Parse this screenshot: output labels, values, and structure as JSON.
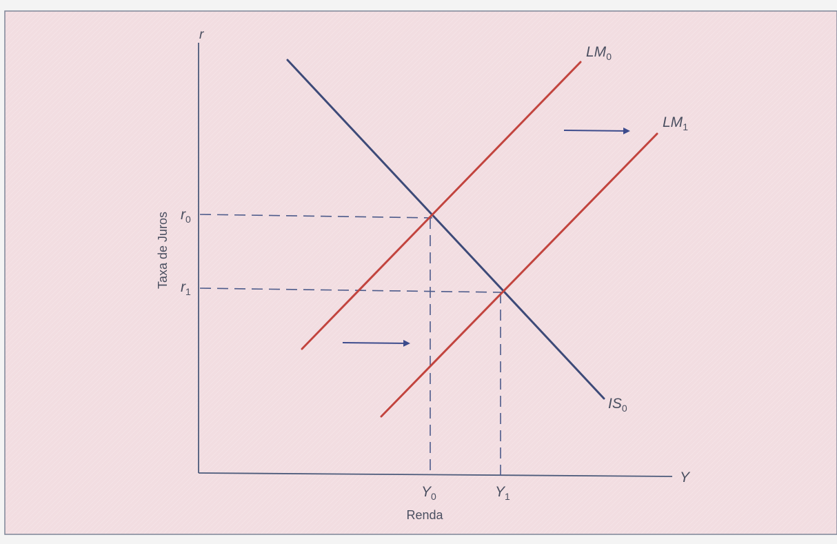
{
  "colors": {
    "panel": "#f2dde1",
    "frame": "#7d8496",
    "axis": "#4b5a7a",
    "is_curve": "#3d4a78",
    "lm_curve": "#c2443e",
    "guide": "#4c5a8a",
    "arrow": "#3c4b8c",
    "text": "#4a4f60"
  },
  "axes": {
    "y_label": "Taxa de Juros",
    "y_symbol": "r",
    "x_label": "Renda",
    "x_symbol": "Y"
  },
  "curves": {
    "lm0": {
      "name": "LM",
      "sub": "0"
    },
    "lm1": {
      "name": "LM",
      "sub": "1"
    },
    "is0": {
      "name": "IS",
      "sub": "0"
    }
  },
  "ticks": {
    "r0": {
      "name": "r",
      "sub": "0"
    },
    "r1": {
      "name": "r",
      "sub": "1"
    },
    "y0": {
      "name": "Y",
      "sub": "0"
    },
    "y1": {
      "name": "Y",
      "sub": "1"
    }
  },
  "shift_arrows": {
    "count": 2,
    "direction": "right"
  }
}
